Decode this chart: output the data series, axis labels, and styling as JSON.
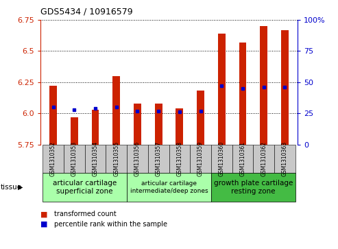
{
  "title": "GDS5434 / 10916579",
  "samples": [
    "GSM1310352",
    "GSM1310353",
    "GSM1310354",
    "GSM1310355",
    "GSM1310356",
    "GSM1310357",
    "GSM1310358",
    "GSM1310359",
    "GSM1310360",
    "GSM1310361",
    "GSM1310362",
    "GSM1310363"
  ],
  "red_values": [
    6.22,
    5.97,
    6.03,
    6.3,
    6.08,
    6.08,
    6.04,
    6.18,
    6.64,
    6.57,
    6.7,
    6.67
  ],
  "blue_percentiles": [
    30,
    28,
    29,
    30,
    27,
    27,
    26,
    27,
    47,
    45,
    46,
    46
  ],
  "ymin": 5.75,
  "ymax": 6.75,
  "yticks_red": [
    5.75,
    6.0,
    6.25,
    6.5,
    6.75
  ],
  "yticks_blue": [
    0,
    25,
    50,
    75,
    100
  ],
  "bar_color": "#cc2200",
  "blue_color": "#0000cc",
  "tick_bg_color": "#c8c8c8",
  "groups": [
    {
      "label": "articular cartilage\nsuperficial zone",
      "start": 0,
      "end": 3,
      "color": "#aaffaa",
      "fontsize": 7.5
    },
    {
      "label": "articular cartilage\nintermediate/deep zones",
      "start": 4,
      "end": 7,
      "color": "#aaffaa",
      "fontsize": 6.5
    },
    {
      "label": "growth plate cartilage\nresting zone",
      "start": 8,
      "end": 11,
      "color": "#44bb44",
      "fontsize": 7.5
    }
  ],
  "legend_items": [
    {
      "color": "#cc2200",
      "label": "transformed count"
    },
    {
      "color": "#0000cc",
      "label": "percentile rank within the sample"
    }
  ],
  "tissue_label": "tissue",
  "bar_width": 0.35
}
